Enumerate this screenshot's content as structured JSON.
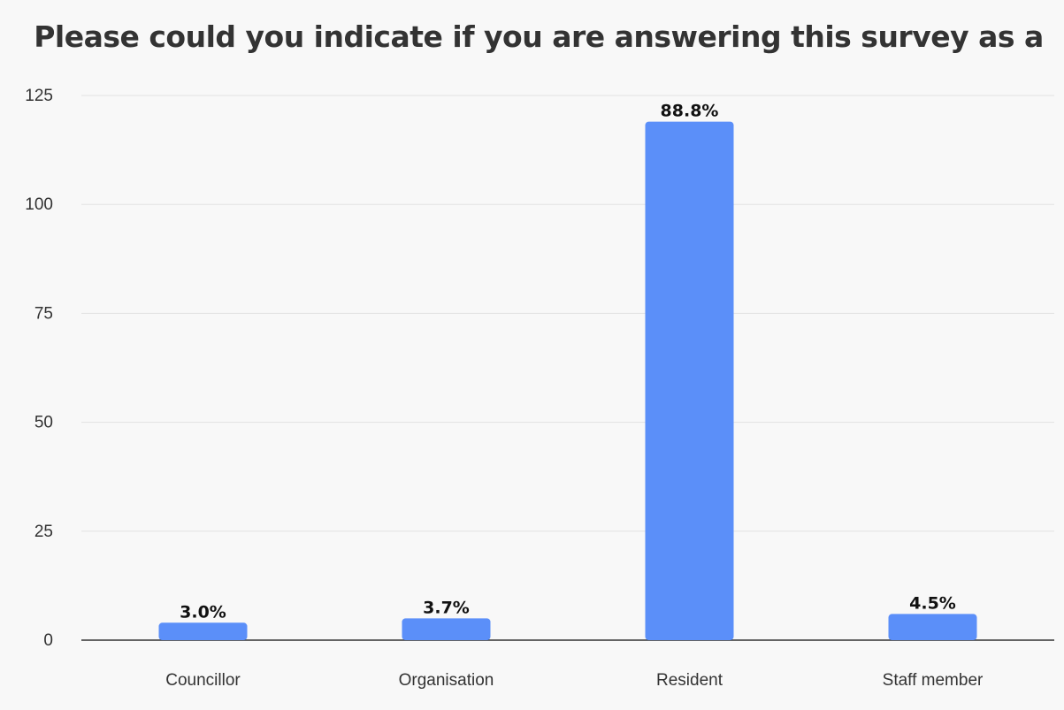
{
  "chart_data": {
    "type": "bar",
    "title": "Please could you indicate if you are answering this survey as a",
    "xlabel": "",
    "ylabel": "",
    "categories": [
      "Councillor",
      "Organisation",
      "Resident",
      "Staff member"
    ],
    "values": [
      4,
      5,
      119,
      6
    ],
    "data_labels": [
      "3.0%",
      "3.7%",
      "88.8%",
      "4.5%"
    ],
    "ylim": [
      0,
      125
    ],
    "yticks": [
      0,
      25,
      50,
      75,
      100,
      125
    ],
    "grid": true,
    "legend": "none",
    "bar_color": "#5b8ff9"
  }
}
